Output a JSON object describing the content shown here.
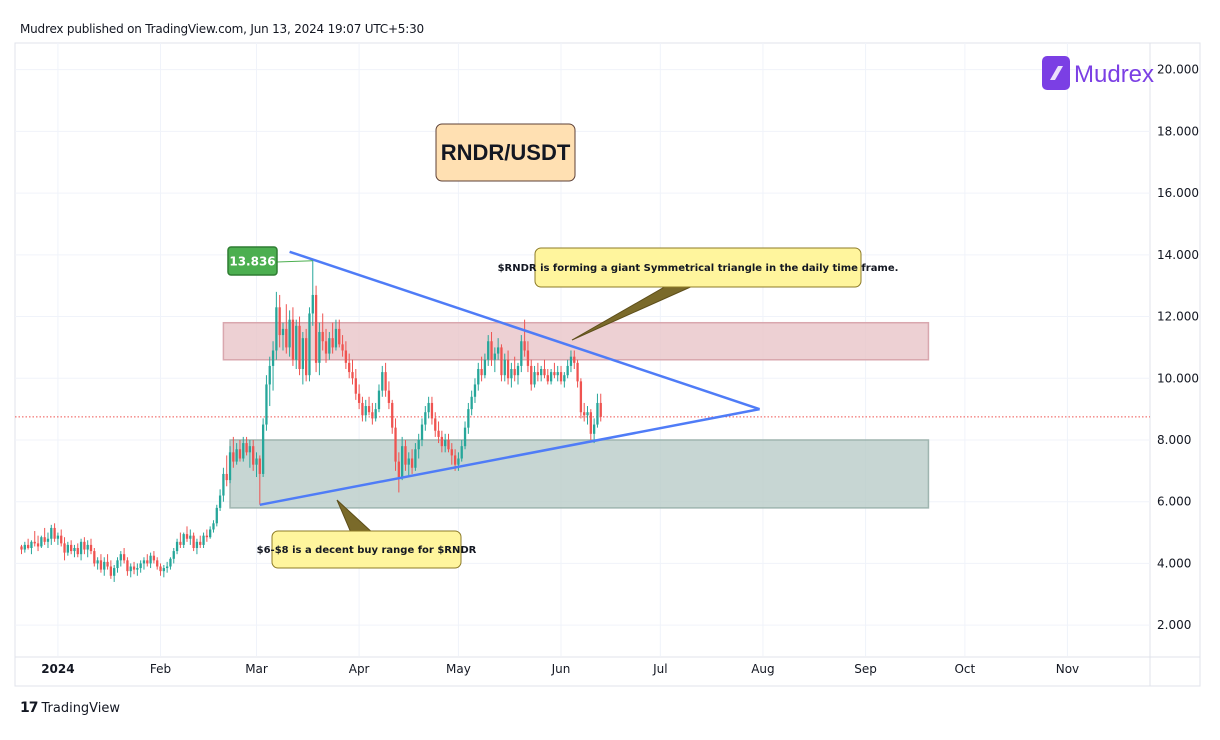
{
  "header": {
    "published_by": "Mudrex published on TradingView.com, Jun 13, 2024 19:07 UTC+5:30"
  },
  "footer": {
    "brand_logo": "17",
    "brand": "TradingView"
  },
  "watermark": {
    "brand": "Mudrex"
  },
  "colors": {
    "up": "#26a69a",
    "down": "#ef5350",
    "triangle": "#4f7cf7",
    "resistance_zone": "#e8c4c8",
    "support_zone": "#b9ccc8",
    "note_bg": "#fff59d",
    "title_bg": "#ffe0b2",
    "peak_label": "#4caf50",
    "brand": "#7b3fe4"
  },
  "chart_data": {
    "type": "candlestick",
    "title": "RNDR/USDT",
    "x_labels": [
      "2024",
      "Feb",
      "Mar",
      "Apr",
      "May",
      "Jun",
      "Jul",
      "Aug",
      "Sep",
      "Oct",
      "Nov"
    ],
    "y_ticks": [
      "2.000",
      "4.000",
      "6.000",
      "8.000",
      "10.000",
      "12.000",
      "14.000",
      "16.000",
      "18.000",
      "20.000"
    ],
    "ylim": [
      1.0,
      20.8
    ],
    "peak_label": "13.836",
    "current_price": 8.75,
    "zones": [
      {
        "kind": "resistance",
        "y_low": 10.6,
        "y_high": 11.8,
        "x_start": "2024-02-20",
        "x_end": "2024-09-20"
      },
      {
        "kind": "support",
        "y_low": 5.8,
        "y_high": 8.0,
        "x_start": "2024-02-22",
        "x_end": "2024-09-20"
      }
    ],
    "triangle": {
      "upper": {
        "from": [
          "2024-03-11",
          14.1
        ],
        "to": [
          "2024-07-31",
          9.0
        ]
      },
      "lower": {
        "from": [
          "2024-03-02",
          5.9
        ],
        "to": [
          "2024-07-31",
          9.0
        ]
      }
    },
    "annotations": [
      "$RNDR is forming a giant Symmetrical triangle in the daily time frame.",
      "$6-$8 is a decent buy range for $RNDR"
    ],
    "candles": [
      [
        "2023-12-21",
        4.55,
        4.6,
        4.3,
        4.45
      ],
      [
        "2023-12-22",
        4.45,
        4.7,
        4.35,
        4.6
      ],
      [
        "2023-12-23",
        4.6,
        4.8,
        4.45,
        4.5
      ],
      [
        "2023-12-24",
        4.5,
        4.75,
        4.3,
        4.7
      ],
      [
        "2023-12-25",
        4.7,
        5.05,
        4.55,
        4.65
      ],
      [
        "2023-12-26",
        4.65,
        4.9,
        4.4,
        4.55
      ],
      [
        "2023-12-27",
        4.55,
        4.9,
        4.5,
        4.85
      ],
      [
        "2023-12-28",
        4.85,
        5.15,
        4.6,
        4.7
      ],
      [
        "2023-12-29",
        4.7,
        5.0,
        4.5,
        4.8
      ],
      [
        "2023-12-30",
        4.8,
        5.25,
        4.6,
        5.15
      ],
      [
        "2023-12-31",
        5.15,
        5.3,
        4.7,
        4.8
      ],
      [
        "2024-01-01",
        4.8,
        5.0,
        4.6,
        4.9
      ],
      [
        "2024-01-02",
        4.9,
        5.1,
        4.55,
        4.65
      ],
      [
        "2024-01-03",
        4.65,
        4.85,
        4.1,
        4.35
      ],
      [
        "2024-01-04",
        4.35,
        4.7,
        4.25,
        4.6
      ],
      [
        "2024-01-05",
        4.6,
        4.75,
        4.3,
        4.4
      ],
      [
        "2024-01-06",
        4.4,
        4.6,
        4.2,
        4.5
      ],
      [
        "2024-01-07",
        4.5,
        4.65,
        4.2,
        4.3
      ],
      [
        "2024-01-08",
        4.3,
        4.8,
        4.1,
        4.7
      ],
      [
        "2024-01-09",
        4.7,
        4.85,
        4.3,
        4.45
      ],
      [
        "2024-01-10",
        4.45,
        4.75,
        4.2,
        4.6
      ],
      [
        "2024-01-11",
        4.6,
        4.8,
        4.3,
        4.4
      ],
      [
        "2024-01-12",
        4.4,
        4.5,
        3.9,
        4.0
      ],
      [
        "2024-01-13",
        4.0,
        4.2,
        3.8,
        4.1
      ],
      [
        "2024-01-14",
        4.1,
        4.3,
        3.7,
        3.8
      ],
      [
        "2024-01-15",
        3.8,
        4.2,
        3.6,
        4.05
      ],
      [
        "2024-01-16",
        4.05,
        4.3,
        3.8,
        3.9
      ],
      [
        "2024-01-17",
        3.9,
        4.1,
        3.5,
        3.6
      ],
      [
        "2024-01-18",
        3.6,
        3.95,
        3.4,
        3.85
      ],
      [
        "2024-01-19",
        3.85,
        4.2,
        3.7,
        4.1
      ],
      [
        "2024-01-20",
        4.1,
        4.4,
        3.9,
        4.3
      ],
      [
        "2024-01-21",
        4.3,
        4.5,
        4.0,
        4.1
      ],
      [
        "2024-01-22",
        4.1,
        4.2,
        3.6,
        3.75
      ],
      [
        "2024-01-23",
        3.75,
        4.0,
        3.55,
        3.9
      ],
      [
        "2024-01-24",
        3.9,
        4.05,
        3.65,
        3.8
      ],
      [
        "2024-01-25",
        3.8,
        4.0,
        3.6,
        3.85
      ],
      [
        "2024-01-26",
        3.85,
        4.1,
        3.7,
        4.0
      ],
      [
        "2024-01-27",
        4.0,
        4.2,
        3.8,
        4.1
      ],
      [
        "2024-01-28",
        4.1,
        4.3,
        3.9,
        4.0
      ],
      [
        "2024-01-29",
        4.0,
        4.35,
        3.85,
        4.25
      ],
      [
        "2024-01-30",
        4.25,
        4.4,
        4.0,
        4.1
      ],
      [
        "2024-01-31",
        4.1,
        4.2,
        3.8,
        3.9
      ],
      [
        "2024-02-01",
        3.9,
        4.0,
        3.6,
        3.75
      ],
      [
        "2024-02-02",
        3.75,
        3.95,
        3.55,
        3.85
      ],
      [
        "2024-02-03",
        3.85,
        4.05,
        3.7,
        3.9
      ],
      [
        "2024-02-04",
        3.9,
        4.2,
        3.8,
        4.15
      ],
      [
        "2024-02-05",
        4.15,
        4.5,
        4.0,
        4.4
      ],
      [
        "2024-02-06",
        4.4,
        4.8,
        4.3,
        4.7
      ],
      [
        "2024-02-07",
        4.7,
        5.0,
        4.5,
        4.6
      ],
      [
        "2024-02-08",
        4.6,
        5.0,
        4.5,
        4.95
      ],
      [
        "2024-02-09",
        4.95,
        5.2,
        4.7,
        4.8
      ],
      [
        "2024-02-10",
        4.8,
        5.1,
        4.6,
        4.9
      ],
      [
        "2024-02-11",
        4.9,
        5.0,
        4.4,
        4.5
      ],
      [
        "2024-02-12",
        4.5,
        4.8,
        4.3,
        4.7
      ],
      [
        "2024-02-13",
        4.7,
        4.9,
        4.5,
        4.6
      ],
      [
        "2024-02-14",
        4.6,
        5.0,
        4.5,
        4.9
      ],
      [
        "2024-02-15",
        4.9,
        5.1,
        4.7,
        4.85
      ],
      [
        "2024-02-16",
        4.85,
        5.2,
        4.8,
        5.1
      ],
      [
        "2024-02-17",
        5.1,
        5.4,
        5.0,
        5.3
      ],
      [
        "2024-02-18",
        5.3,
        5.9,
        5.2,
        5.8
      ],
      [
        "2024-02-19",
        5.8,
        6.4,
        5.7,
        6.2
      ],
      [
        "2024-02-20",
        6.2,
        7.1,
        6.0,
        6.9
      ],
      [
        "2024-02-21",
        6.9,
        7.5,
        6.5,
        6.7
      ],
      [
        "2024-02-22",
        6.7,
        7.8,
        6.6,
        7.6
      ],
      [
        "2024-02-23",
        7.6,
        8.1,
        7.1,
        7.3
      ],
      [
        "2024-02-24",
        7.3,
        7.9,
        7.2,
        7.7
      ],
      [
        "2024-02-25",
        7.7,
        8.0,
        7.3,
        7.4
      ],
      [
        "2024-02-26",
        7.4,
        8.1,
        7.3,
        7.9
      ],
      [
        "2024-02-27",
        7.9,
        8.1,
        7.5,
        7.6
      ],
      [
        "2024-02-28",
        7.6,
        8.0,
        7.1,
        7.8
      ],
      [
        "2024-02-29",
        7.8,
        8.0,
        7.0,
        7.2
      ],
      [
        "2024-03-01",
        7.2,
        7.6,
        6.8,
        7.4
      ],
      [
        "2024-03-02",
        7.4,
        7.5,
        5.9,
        6.9
      ],
      [
        "2024-03-03",
        6.9,
        8.7,
        6.8,
        8.5
      ],
      [
        "2024-03-04",
        8.5,
        10.1,
        8.3,
        9.8
      ],
      [
        "2024-03-05",
        9.8,
        10.7,
        9.1,
        10.4
      ],
      [
        "2024-03-06",
        10.4,
        11.2,
        9.6,
        10.9
      ],
      [
        "2024-03-07",
        10.9,
        12.8,
        10.6,
        12.3
      ],
      [
        "2024-03-08",
        12.3,
        12.7,
        11.0,
        11.4
      ],
      [
        "2024-03-09",
        11.4,
        11.8,
        10.9,
        11.6
      ],
      [
        "2024-03-10",
        11.6,
        12.4,
        10.8,
        11.0
      ],
      [
        "2024-03-11",
        11.0,
        12.2,
        10.7,
        11.9
      ],
      [
        "2024-03-12",
        11.9,
        12.3,
        10.4,
        10.6
      ],
      [
        "2024-03-13",
        10.6,
        11.9,
        10.3,
        11.7
      ],
      [
        "2024-03-14",
        11.7,
        12.0,
        10.1,
        10.3
      ],
      [
        "2024-03-15",
        10.3,
        11.5,
        9.8,
        11.3
      ],
      [
        "2024-03-16",
        11.3,
        11.6,
        9.9,
        10.1
      ],
      [
        "2024-03-17",
        10.1,
        12.3,
        9.9,
        12.1
      ],
      [
        "2024-03-18",
        12.1,
        13.84,
        11.7,
        12.7
      ],
      [
        "2024-03-19",
        12.7,
        13.0,
        10.2,
        10.5
      ],
      [
        "2024-03-20",
        10.5,
        11.8,
        10.1,
        11.5
      ],
      [
        "2024-03-21",
        11.5,
        12.1,
        10.9,
        11.2
      ],
      [
        "2024-03-22",
        11.2,
        11.6,
        10.5,
        10.8
      ],
      [
        "2024-03-23",
        10.8,
        11.5,
        10.6,
        11.3
      ],
      [
        "2024-03-24",
        11.3,
        11.8,
        10.8,
        11.0
      ],
      [
        "2024-03-25",
        11.0,
        11.9,
        10.9,
        11.6
      ],
      [
        "2024-03-26",
        11.6,
        11.9,
        11.0,
        11.1
      ],
      [
        "2024-03-27",
        11.1,
        11.4,
        10.7,
        10.9
      ],
      [
        "2024-03-28",
        10.9,
        11.2,
        10.3,
        10.5
      ],
      [
        "2024-03-29",
        10.5,
        10.8,
        10.0,
        10.2
      ],
      [
        "2024-03-30",
        10.2,
        10.6,
        9.8,
        10.0
      ],
      [
        "2024-03-31",
        10.0,
        10.3,
        9.3,
        9.5
      ],
      [
        "2024-04-01",
        9.5,
        9.8,
        9.0,
        9.2
      ],
      [
        "2024-04-02",
        9.2,
        9.4,
        8.6,
        8.8
      ],
      [
        "2024-04-03",
        8.8,
        9.3,
        8.6,
        9.1
      ],
      [
        "2024-04-04",
        9.1,
        9.4,
        8.8,
        8.9
      ],
      [
        "2024-04-05",
        8.9,
        9.2,
        8.5,
        8.7
      ],
      [
        "2024-04-06",
        8.7,
        9.2,
        8.6,
        9.0
      ],
      [
        "2024-04-07",
        9.0,
        9.8,
        8.9,
        9.6
      ],
      [
        "2024-04-08",
        9.6,
        10.4,
        9.4,
        10.2
      ],
      [
        "2024-04-09",
        10.2,
        10.5,
        9.4,
        9.6
      ],
      [
        "2024-04-10",
        9.6,
        9.9,
        9.0,
        9.2
      ],
      [
        "2024-04-11",
        9.2,
        9.3,
        8.2,
        8.4
      ],
      [
        "2024-04-12",
        8.4,
        8.7,
        7.0,
        7.3
      ],
      [
        "2024-04-13",
        7.3,
        7.6,
        6.3,
        6.8
      ],
      [
        "2024-04-14",
        6.8,
        8.1,
        6.7,
        7.8
      ],
      [
        "2024-04-15",
        7.8,
        8.0,
        7.0,
        7.2
      ],
      [
        "2024-04-16",
        7.2,
        7.6,
        6.8,
        7.4
      ],
      [
        "2024-04-17",
        7.4,
        7.7,
        6.9,
        7.1
      ],
      [
        "2024-04-18",
        7.1,
        7.9,
        7.0,
        7.7
      ],
      [
        "2024-04-19",
        7.7,
        8.2,
        7.4,
        8.0
      ],
      [
        "2024-04-20",
        8.0,
        8.7,
        7.8,
        8.5
      ],
      [
        "2024-04-21",
        8.5,
        9.1,
        8.3,
        8.9
      ],
      [
        "2024-04-22",
        8.9,
        9.4,
        8.7,
        9.2
      ],
      [
        "2024-04-23",
        9.2,
        9.4,
        8.5,
        8.7
      ],
      [
        "2024-04-24",
        8.7,
        8.9,
        8.1,
        8.3
      ],
      [
        "2024-04-25",
        8.3,
        8.6,
        7.9,
        8.1
      ],
      [
        "2024-04-26",
        8.1,
        8.3,
        7.6,
        7.8
      ],
      [
        "2024-04-27",
        7.8,
        8.2,
        7.6,
        8.0
      ],
      [
        "2024-04-28",
        8.0,
        8.2,
        7.6,
        7.7
      ],
      [
        "2024-04-29",
        7.7,
        7.9,
        7.2,
        7.5
      ],
      [
        "2024-04-30",
        7.5,
        7.7,
        7.0,
        7.2
      ],
      [
        "2024-05-01",
        7.2,
        7.6,
        7.0,
        7.4
      ],
      [
        "2024-05-02",
        7.4,
        8.0,
        7.3,
        7.8
      ],
      [
        "2024-05-03",
        7.8,
        8.6,
        7.7,
        8.4
      ],
      [
        "2024-05-04",
        8.4,
        9.2,
        8.2,
        9.0
      ],
      [
        "2024-05-05",
        9.0,
        9.6,
        8.8,
        9.4
      ],
      [
        "2024-05-06",
        9.4,
        10.0,
        9.2,
        9.8
      ],
      [
        "2024-05-07",
        9.8,
        10.5,
        9.6,
        10.3
      ],
      [
        "2024-05-08",
        10.3,
        10.7,
        9.9,
        10.1
      ],
      [
        "2024-05-09",
        10.1,
        10.8,
        10.0,
        10.6
      ],
      [
        "2024-05-10",
        10.6,
        11.4,
        10.4,
        11.2
      ],
      [
        "2024-05-11",
        11.2,
        11.5,
        10.4,
        10.6
      ],
      [
        "2024-05-12",
        10.6,
        11.0,
        10.2,
        10.8
      ],
      [
        "2024-05-13",
        10.8,
        11.3,
        10.6,
        11.0
      ],
      [
        "2024-05-14",
        11.0,
        11.1,
        9.9,
        10.1
      ],
      [
        "2024-05-15",
        10.1,
        10.8,
        9.9,
        10.6
      ],
      [
        "2024-05-16",
        10.6,
        10.9,
        9.8,
        10.0
      ],
      [
        "2024-05-17",
        10.0,
        10.5,
        9.7,
        10.3
      ],
      [
        "2024-05-18",
        10.3,
        10.7,
        9.9,
        10.1
      ],
      [
        "2024-05-19",
        10.1,
        10.5,
        9.8,
        10.4
      ],
      [
        "2024-05-20",
        10.4,
        11.4,
        10.2,
        11.2
      ],
      [
        "2024-05-21",
        11.2,
        11.9,
        10.7,
        10.9
      ],
      [
        "2024-05-22",
        10.9,
        11.2,
        10.2,
        10.4
      ],
      [
        "2024-05-23",
        10.4,
        10.6,
        9.6,
        9.8
      ],
      [
        "2024-05-24",
        9.8,
        10.4,
        9.7,
        10.2
      ],
      [
        "2024-05-25",
        10.2,
        10.5,
        9.9,
        10.1
      ],
      [
        "2024-05-26",
        10.1,
        10.4,
        9.9,
        10.3
      ],
      [
        "2024-05-27",
        10.3,
        10.6,
        10.0,
        10.1
      ],
      [
        "2024-05-28",
        10.1,
        10.3,
        9.8,
        9.9
      ],
      [
        "2024-05-29",
        9.9,
        10.3,
        9.8,
        10.2
      ],
      [
        "2024-05-30",
        10.2,
        10.5,
        10.0,
        10.1
      ],
      [
        "2024-05-31",
        10.1,
        10.4,
        9.9,
        10.2
      ],
      [
        "2024-06-01",
        10.2,
        10.4,
        9.8,
        9.9
      ],
      [
        "2024-06-02",
        9.9,
        10.2,
        9.7,
        10.1
      ],
      [
        "2024-06-03",
        10.1,
        10.6,
        10.0,
        10.4
      ],
      [
        "2024-06-04",
        10.4,
        10.9,
        10.2,
        10.7
      ],
      [
        "2024-06-05",
        10.7,
        10.9,
        10.3,
        10.5
      ],
      [
        "2024-06-06",
        10.5,
        10.6,
        9.7,
        9.9
      ],
      [
        "2024-06-07",
        9.9,
        10.0,
        8.7,
        8.9
      ],
      [
        "2024-06-08",
        8.9,
        9.2,
        8.6,
        8.8
      ],
      [
        "2024-06-09",
        8.8,
        9.1,
        8.5,
        8.9
      ],
      [
        "2024-06-10",
        8.9,
        9.0,
        8.0,
        8.2
      ],
      [
        "2024-06-11",
        8.2,
        8.7,
        7.9,
        8.5
      ],
      [
        "2024-06-12",
        8.5,
        9.5,
        8.4,
        9.2
      ],
      [
        "2024-06-13",
        9.2,
        9.5,
        8.6,
        8.75
      ]
    ]
  }
}
